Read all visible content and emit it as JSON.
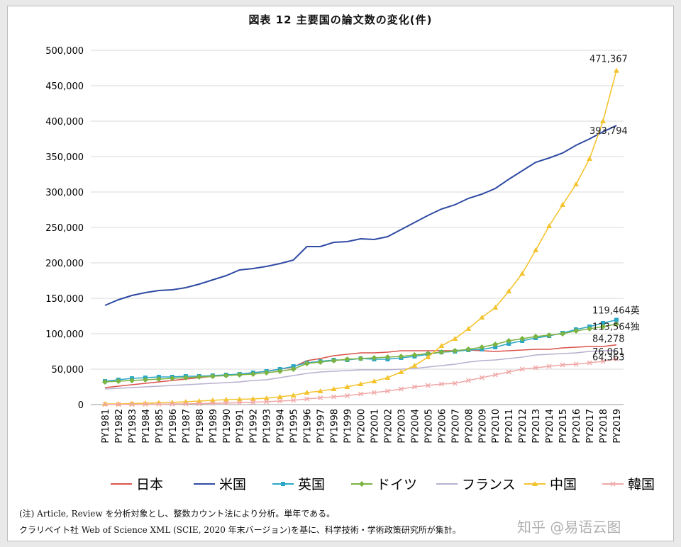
{
  "title": "図表 12 主要国の論文数の変化(件)",
  "notes": {
    "line1": "(注) Article, Review を分析対象とし、整数カウント法により分析。単年である。",
    "line2": "クラリベイト社 Web of Science XML (SCIE, 2020 年末バージョン)を基に、科学技術・学術政策研究所が集計。"
  },
  "watermark": "知乎 @易语云图",
  "colors": {
    "日本": "#d9534a",
    "米国": "#2f4aa3",
    "英国": "#2aa7c6",
    "ドイツ": "#7cb342",
    "フランス": "#b8b0cf",
    "中国": "#f4c430",
    "韓国": "#f0a8a8",
    "grid": "#d9d9d9"
  },
  "chart_data": {
    "type": "line",
    "title": "図表 12 主要国の論文数の変化(件)",
    "xlabel": "",
    "ylabel": "",
    "ylim": [
      0,
      500000
    ],
    "yticks": [
      0,
      50000,
      100000,
      150000,
      200000,
      250000,
      300000,
      350000,
      400000,
      450000,
      500000
    ],
    "ytick_labels": [
      "0",
      "50,000",
      "100,000",
      "150,000",
      "200,000",
      "250,000",
      "300,000",
      "350,000",
      "400,000",
      "450,000",
      "500,000"
    ],
    "grid": true,
    "legend_position": "bottom",
    "categories": [
      "PY1981",
      "PY1982",
      "PY1983",
      "PY1984",
      "PY1985",
      "PY1986",
      "PY1987",
      "PY1988",
      "PY1989",
      "PY1990",
      "PY1991",
      "PY1992",
      "PY1993",
      "PY1994",
      "PY1995",
      "PY1996",
      "PY1997",
      "PY1998",
      "PY1999",
      "PY2000",
      "PY2001",
      "PY2002",
      "PY2003",
      "PY2004",
      "PY2005",
      "PY2006",
      "PY2007",
      "PY2008",
      "PY2009",
      "PY2010",
      "PY2011",
      "PY2012",
      "PY2013",
      "PY2014",
      "PY2015",
      "PY2016",
      "PY2017",
      "PY2018",
      "PY2019"
    ],
    "series": [
      {
        "name": "日本",
        "marker": "none",
        "values": [
          24000,
          26000,
          28000,
          30000,
          32000,
          34000,
          36000,
          38000,
          40000,
          41000,
          43000,
          45000,
          47000,
          50000,
          53000,
          62000,
          65000,
          69000,
          71000,
          73000,
          73000,
          74000,
          76000,
          76000,
          76000,
          76000,
          76000,
          77000,
          76000,
          75000,
          76000,
          77000,
          78000,
          78000,
          80000,
          81000,
          82000,
          82000,
          84278
        ]
      },
      {
        "name": "米国",
        "marker": "none",
        "values": [
          140000,
          148000,
          154000,
          158000,
          161000,
          162000,
          165000,
          170000,
          176000,
          182000,
          190000,
          192000,
          195000,
          199000,
          204000,
          223000,
          223000,
          229000,
          230000,
          234000,
          233000,
          237000,
          247000,
          257000,
          267000,
          276000,
          282000,
          291000,
          297000,
          305000,
          318000,
          330000,
          342000,
          348000,
          355000,
          366000,
          375000,
          385000,
          393794
        ]
      },
      {
        "name": "英国",
        "marker": "square",
        "values": [
          33000,
          35000,
          37000,
          38000,
          39000,
          39000,
          40000,
          40000,
          41000,
          42000,
          43000,
          45000,
          47000,
          50000,
          54000,
          59000,
          61000,
          63000,
          63000,
          65000,
          64000,
          64000,
          66000,
          68000,
          71000,
          74000,
          75000,
          77000,
          78000,
          81000,
          86000,
          90000,
          94000,
          97000,
          101000,
          106000,
          110000,
          115000,
          119464
        ]
      },
      {
        "name": "ドイツ",
        "marker": "diamond",
        "values": [
          32000,
          33000,
          34000,
          35000,
          36000,
          37000,
          38000,
          39000,
          40000,
          41000,
          42000,
          43000,
          45000,
          47000,
          50000,
          58000,
          60000,
          62000,
          64000,
          65000,
          66000,
          67000,
          68000,
          70000,
          72000,
          74000,
          76000,
          78000,
          81000,
          85000,
          90000,
          93000,
          96000,
          98000,
          100000,
          104000,
          107000,
          110000,
          113564
        ]
      },
      {
        "name": "フランス",
        "marker": "none",
        "values": [
          22000,
          23000,
          24000,
          25000,
          26000,
          27000,
          28000,
          29000,
          30000,
          31000,
          32000,
          34000,
          35000,
          38000,
          41000,
          44000,
          46000,
          47000,
          48000,
          49000,
          49000,
          49000,
          50000,
          51000,
          53000,
          55000,
          57000,
          60000,
          62000,
          63000,
          65000,
          67000,
          70000,
          71000,
          72000,
          73000,
          75000,
          76000,
          76061
        ]
      },
      {
        "name": "中国",
        "marker": "triangle",
        "values": [
          1000,
          1000,
          1500,
          2000,
          2500,
          3000,
          4000,
          5000,
          6000,
          7000,
          7500,
          8000,
          9000,
          11000,
          13000,
          17000,
          19000,
          22000,
          25000,
          29000,
          33000,
          38000,
          46000,
          55000,
          67000,
          83000,
          93000,
          107000,
          123000,
          137000,
          160000,
          185000,
          218000,
          252000,
          282000,
          311000,
          347000,
          400000,
          471367
        ]
      },
      {
        "name": "韓国",
        "marker": "x",
        "values": [
          200,
          300,
          400,
          500,
          600,
          800,
          1000,
          1300,
          1800,
          2200,
          2700,
          3300,
          4000,
          5000,
          6000,
          8000,
          9500,
          11000,
          12500,
          15000,
          17000,
          19000,
          22000,
          25000,
          27000,
          29000,
          30000,
          34000,
          38000,
          42000,
          46000,
          50000,
          52000,
          54000,
          56000,
          57000,
          59000,
          61000,
          64363
        ]
      }
    ],
    "annotations": [
      {
        "series": "中国",
        "text": "471,367"
      },
      {
        "series": "米国",
        "text": "393,794"
      },
      {
        "series": "英国",
        "text": "119,464英"
      },
      {
        "series": "ドイツ",
        "text": "113,564独"
      },
      {
        "series": "日本",
        "text": "84,278"
      },
      {
        "series": "フランス",
        "text": "76,061"
      },
      {
        "series": "韓国",
        "text": "64,363"
      }
    ]
  }
}
